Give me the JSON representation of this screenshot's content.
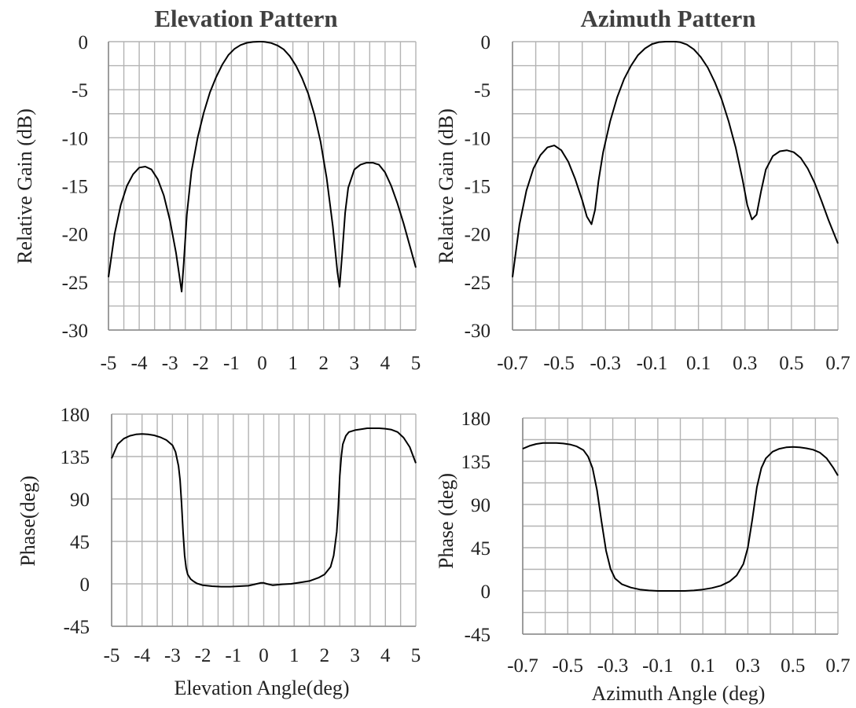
{
  "chart_data": [
    {
      "id": "elev-gain",
      "type": "line",
      "title": "Elevation Pattern",
      "xlabel": "",
      "ylabel": "Relative Gain (dB)",
      "xlim": [
        -5,
        5
      ],
      "ylim": [
        -30,
        0
      ],
      "grid": true,
      "x_ticks": [
        -5,
        -4,
        -3,
        -2,
        -1,
        0,
        1,
        2,
        3,
        4,
        5
      ],
      "y_ticks": [
        0,
        -5,
        -10,
        -15,
        -20,
        -25,
        -30
      ],
      "x_tick_labels": [
        "-5",
        "-4",
        "-3",
        "-2",
        "-1",
        "0",
        "1",
        "2",
        "3",
        "4",
        "5"
      ],
      "y_tick_labels": [
        "0",
        "-5",
        "-10",
        "-15",
        "-20",
        "-25",
        "-30"
      ],
      "series": [
        {
          "x": [
            -5,
            -4.8,
            -4.6,
            -4.4,
            -4.2,
            -4.0,
            -3.8,
            -3.6,
            -3.4,
            -3.2,
            -3.0,
            -2.8,
            -2.7,
            -2.62,
            -2.55,
            -2.45,
            -2.3,
            -2.1,
            -1.9,
            -1.7,
            -1.5,
            -1.3,
            -1.1,
            -0.9,
            -0.7,
            -0.5,
            -0.3,
            -0.1,
            0,
            0.1,
            0.3,
            0.5,
            0.7,
            0.9,
            1.1,
            1.3,
            1.5,
            1.7,
            1.9,
            2.1,
            2.3,
            2.45,
            2.52,
            2.6,
            2.7,
            2.8,
            3.0,
            3.2,
            3.4,
            3.6,
            3.7,
            3.8,
            4.0,
            4.2,
            4.4,
            4.6,
            4.8,
            5.0
          ],
          "y": [
            -24.5,
            -20.0,
            -17.0,
            -15.0,
            -13.8,
            -13.1,
            -13.0,
            -13.3,
            -14.3,
            -16.0,
            -18.6,
            -22.0,
            -24.2,
            -26.0,
            -23.0,
            -18.0,
            -13.5,
            -10.0,
            -7.4,
            -5.3,
            -3.7,
            -2.4,
            -1.4,
            -0.75,
            -0.35,
            -0.12,
            -0.03,
            0.0,
            0.0,
            -0.03,
            -0.15,
            -0.4,
            -0.8,
            -1.5,
            -2.5,
            -3.8,
            -5.4,
            -7.6,
            -10.4,
            -14.2,
            -19.2,
            -24.0,
            -25.5,
            -22.2,
            -17.8,
            -15.2,
            -13.3,
            -12.8,
            -12.6,
            -12.6,
            -12.7,
            -12.8,
            -13.6,
            -15.0,
            -16.8,
            -18.9,
            -21.2,
            -23.5
          ]
        }
      ]
    },
    {
      "id": "azim-gain",
      "type": "line",
      "title": "Azimuth Pattern",
      "xlabel": "",
      "ylabel": "Relative Gain (dB)",
      "xlim": [
        -0.7,
        0.7
      ],
      "ylim": [
        -30,
        0
      ],
      "grid": true,
      "x_ticks": [
        -0.7,
        -0.5,
        -0.3,
        -0.1,
        0.1,
        0.3,
        0.5,
        0.7
      ],
      "y_ticks": [
        0,
        -5,
        -10,
        -15,
        -20,
        -25,
        -30
      ],
      "x_tick_labels": [
        "-0.7",
        "-0.5",
        "-0.3",
        "-0.1",
        "0.1",
        "0.3",
        "0.5",
        "0.7"
      ],
      "y_tick_labels": [
        "0",
        "-5",
        "-10",
        "-15",
        "-20",
        "-25",
        "-30"
      ],
      "series": [
        {
          "x": [
            -0.7,
            -0.67,
            -0.64,
            -0.61,
            -0.58,
            -0.55,
            -0.52,
            -0.49,
            -0.46,
            -0.43,
            -0.4,
            -0.38,
            -0.36,
            -0.345,
            -0.33,
            -0.31,
            -0.28,
            -0.25,
            -0.22,
            -0.19,
            -0.16,
            -0.13,
            -0.1,
            -0.07,
            -0.04,
            -0.02,
            0.0,
            0.02,
            0.05,
            0.08,
            0.11,
            0.14,
            0.17,
            0.2,
            0.23,
            0.26,
            0.29,
            0.31,
            0.33,
            0.35,
            0.37,
            0.39,
            0.42,
            0.45,
            0.48,
            0.51,
            0.54,
            0.57,
            0.6,
            0.63,
            0.66,
            0.7
          ],
          "y": [
            -24.5,
            -19.0,
            -15.5,
            -13.2,
            -11.8,
            -11.0,
            -10.8,
            -11.3,
            -12.5,
            -14.3,
            -16.5,
            -18.2,
            -19.0,
            -17.5,
            -14.5,
            -11.5,
            -8.3,
            -5.8,
            -3.9,
            -2.5,
            -1.4,
            -0.7,
            -0.25,
            -0.05,
            0.0,
            0.0,
            0.0,
            -0.05,
            -0.3,
            -0.8,
            -1.6,
            -2.7,
            -4.2,
            -6.0,
            -8.3,
            -11.0,
            -14.4,
            -17.0,
            -18.5,
            -18.0,
            -15.5,
            -13.3,
            -11.9,
            -11.4,
            -11.3,
            -11.5,
            -12.1,
            -13.2,
            -14.7,
            -16.6,
            -18.6,
            -21.0
          ]
        }
      ]
    },
    {
      "id": "elev-phase",
      "type": "line",
      "title": "",
      "xlabel": "Elevation Angle(deg)",
      "ylabel": "Phase(deg)",
      "xlim": [
        -5,
        5
      ],
      "ylim": [
        -45,
        180
      ],
      "grid": true,
      "x_ticks": [
        -5,
        -4,
        -3,
        -2,
        -1,
        0,
        1,
        2,
        3,
        4,
        5
      ],
      "y_ticks": [
        180,
        135,
        90,
        45,
        0,
        -45
      ],
      "x_tick_labels": [
        "-5",
        "-4",
        "-3",
        "-2",
        "-1",
        "0",
        "1",
        "2",
        "3",
        "4",
        "5"
      ],
      "y_tick_labels": [
        "180",
        "135",
        "90",
        "45",
        "0",
        "-45"
      ],
      "series": [
        {
          "x": [
            -5,
            -4.8,
            -4.6,
            -4.4,
            -4.2,
            -4.0,
            -3.8,
            -3.6,
            -3.4,
            -3.2,
            -3.0,
            -2.9,
            -2.8,
            -2.75,
            -2.7,
            -2.65,
            -2.6,
            -2.55,
            -2.5,
            -2.4,
            -2.3,
            -2.2,
            -2.0,
            -1.7,
            -1.4,
            -1.1,
            -0.8,
            -0.5,
            -0.3,
            -0.1,
            0.0,
            0.1,
            0.3,
            0.6,
            0.9,
            1.2,
            1.5,
            1.8,
            2.0,
            2.2,
            2.3,
            2.4,
            2.45,
            2.5,
            2.55,
            2.6,
            2.7,
            2.8,
            3.0,
            3.2,
            3.4,
            3.6,
            3.8,
            4.0,
            4.2,
            4.4,
            4.6,
            4.8,
            5.0
          ],
          "y": [
            133,
            148,
            154,
            157,
            158.5,
            159,
            158.5,
            157.5,
            155.5,
            152.5,
            147,
            140,
            125,
            110,
            85,
            55,
            30,
            17,
            10,
            5,
            2.5,
            0.5,
            -1.5,
            -2.5,
            -3,
            -3,
            -2.5,
            -2,
            -0.5,
            1,
            1,
            0,
            -1.5,
            -0.5,
            0,
            1.5,
            3,
            6.5,
            10,
            18,
            30,
            55,
            80,
            115,
            135,
            148,
            157,
            161,
            163,
            164,
            165,
            165,
            165,
            164.5,
            163.5,
            161,
            155,
            145,
            128
          ]
        }
      ]
    },
    {
      "id": "azim-phase",
      "type": "line",
      "title": "",
      "xlabel": "Azimuth Angle (deg)",
      "ylabel": "Phase (deg)",
      "xlim": [
        -0.7,
        0.7
      ],
      "ylim": [
        -45,
        180
      ],
      "grid": true,
      "x_ticks": [
        -0.7,
        -0.5,
        -0.3,
        -0.1,
        0.1,
        0.3,
        0.5,
        0.7
      ],
      "y_ticks": [
        180,
        135,
        90,
        45,
        0,
        -45
      ],
      "x_tick_labels": [
        "-0.7",
        "-0.5",
        "-0.3",
        "-0.1",
        "0.1",
        "0.3",
        "0.5",
        "0.7"
      ],
      "y_tick_labels": [
        "180",
        "135",
        "90",
        "45",
        "0",
        "-45"
      ],
      "series": [
        {
          "x": [
            -0.7,
            -0.67,
            -0.64,
            -0.61,
            -0.58,
            -0.55,
            -0.52,
            -0.49,
            -0.46,
            -0.43,
            -0.41,
            -0.39,
            -0.37,
            -0.35,
            -0.33,
            -0.31,
            -0.29,
            -0.26,
            -0.22,
            -0.18,
            -0.14,
            -0.1,
            -0.06,
            -0.02,
            0.02,
            0.06,
            0.1,
            0.14,
            0.18,
            0.22,
            0.25,
            0.28,
            0.3,
            0.32,
            0.34,
            0.36,
            0.38,
            0.41,
            0.44,
            0.47,
            0.5,
            0.53,
            0.56,
            0.59,
            0.62,
            0.65,
            0.68,
            0.7
          ],
          "y": [
            148,
            151,
            153,
            154,
            154,
            154,
            153.5,
            152.5,
            150.5,
            146.5,
            140,
            128,
            105,
            72,
            42,
            23,
            13,
            7,
            3.5,
            1.5,
            0.5,
            0,
            0,
            0,
            0,
            0.5,
            1.5,
            3,
            5.5,
            10,
            16,
            28,
            45,
            75,
            108,
            128,
            138,
            145,
            148,
            149.5,
            150,
            149.5,
            148.5,
            147,
            144,
            138,
            128,
            120
          ]
        }
      ]
    }
  ]
}
